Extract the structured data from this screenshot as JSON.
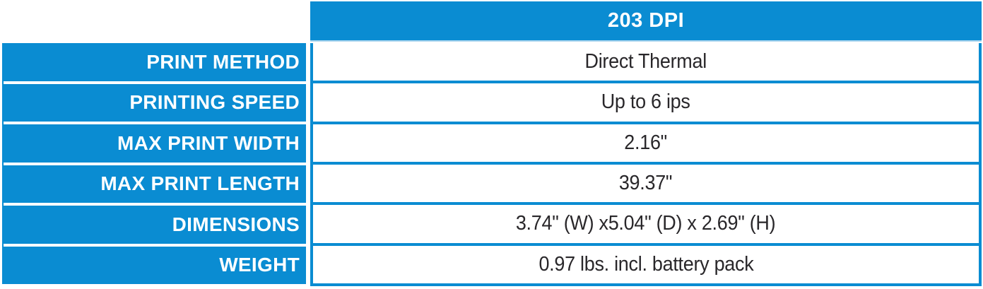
{
  "spec_table": {
    "header": {
      "title": "203 DPI"
    },
    "rows": [
      {
        "label": "PRINT METHOD",
        "value": "Direct Thermal"
      },
      {
        "label": "PRINTING SPEED",
        "value": "Up to 6 ips"
      },
      {
        "label": "MAX PRINT WIDTH",
        "value": "2.16\""
      },
      {
        "label": "MAX PRINT LENGTH",
        "value": "39.37\""
      },
      {
        "label": "DIMENSIONS",
        "value": "3.74\" (W) x5.04\" (D) x 2.69\" (H)"
      },
      {
        "label": "WEIGHT",
        "value": "0.97 lbs. incl. battery pack"
      }
    ],
    "colors": {
      "accent_blue": "#0a8cd2",
      "separator_light_blue": "#aed7ef",
      "label_text": "#ffffff",
      "value_text": "#29272a"
    }
  }
}
